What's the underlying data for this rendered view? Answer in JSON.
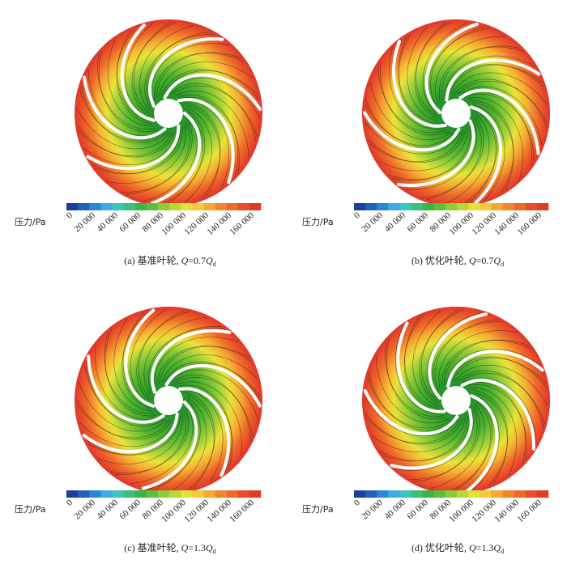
{
  "colorbar": {
    "label": "压力/Pa",
    "ticks": [
      "0",
      "20 000",
      "40 000",
      "60 000",
      "80 000",
      "100 000",
      "120 000",
      "140 000",
      "160 000"
    ]
  },
  "panels": [
    {
      "caption": {
        "text": "(a) 基准叶轮, ",
        "symbol": "Q",
        "ratio": "=0.7",
        "subscript": "d"
      }
    },
    {
      "caption": {
        "text": "(b) 优化叶轮, ",
        "symbol": "Q",
        "ratio": "=0.7",
        "subscript": "d"
      }
    },
    {
      "caption": {
        "text": "(c) 基准叶轮, ",
        "symbol": "Q",
        "ratio": "=1.3",
        "subscript": "d"
      }
    },
    {
      "caption": {
        "text": "(d) 优化叶轮, ",
        "symbol": "Q",
        "ratio": "=1.3",
        "subscript": "d"
      }
    }
  ]
}
